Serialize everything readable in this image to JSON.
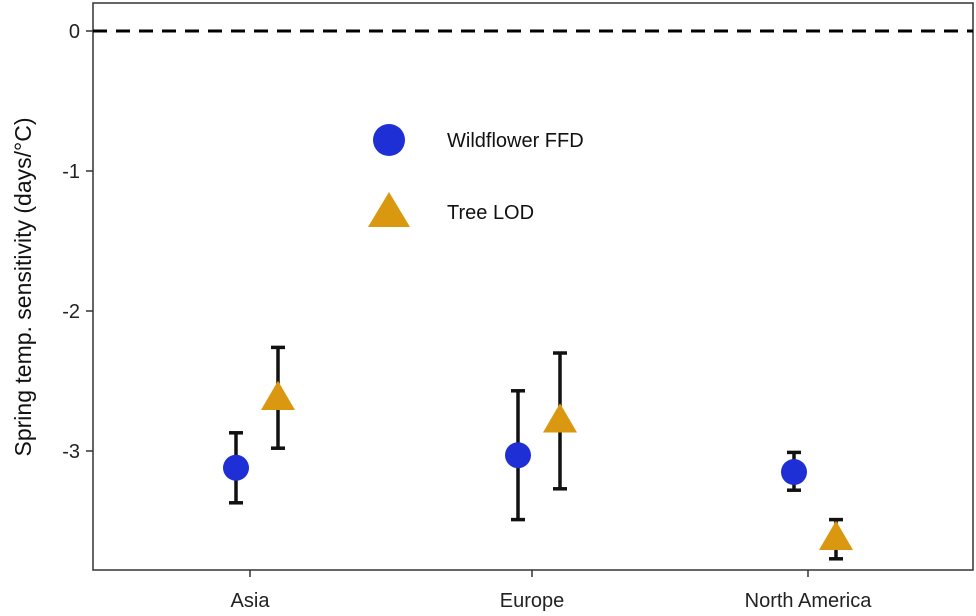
{
  "chart_data": {
    "type": "scatter",
    "title": "",
    "xlabel": "",
    "ylabel": "Spring temp. sensitivity (days/°C)",
    "categories": [
      "Asia",
      "Europe",
      "North America"
    ],
    "ylim": [
      -3.85,
      0.2
    ],
    "yticks": [
      0,
      -1,
      -2,
      -3
    ],
    "ytick_labels": [
      "0",
      "-1",
      "-2",
      "-3"
    ],
    "reference_line": {
      "y": 0,
      "style": "dashed"
    },
    "grid": false,
    "legend": {
      "position": "upper-center"
    },
    "series": [
      {
        "name": "Wildflower FFD",
        "marker": "circle",
        "color": "#1f2fd6",
        "values": [
          -3.12,
          -3.03,
          -3.15
        ],
        "lower": [
          -3.37,
          -3.49,
          -3.28
        ],
        "upper": [
          -2.87,
          -2.57,
          -3.01
        ]
      },
      {
        "name": "Tree LOD",
        "marker": "triangle",
        "color": "#d9980f",
        "values": [
          -2.62,
          -2.78,
          -3.62
        ],
        "lower": [
          -2.98,
          -3.27,
          -3.77
        ],
        "upper": [
          -2.26,
          -2.3,
          -3.49
        ]
      }
    ]
  }
}
